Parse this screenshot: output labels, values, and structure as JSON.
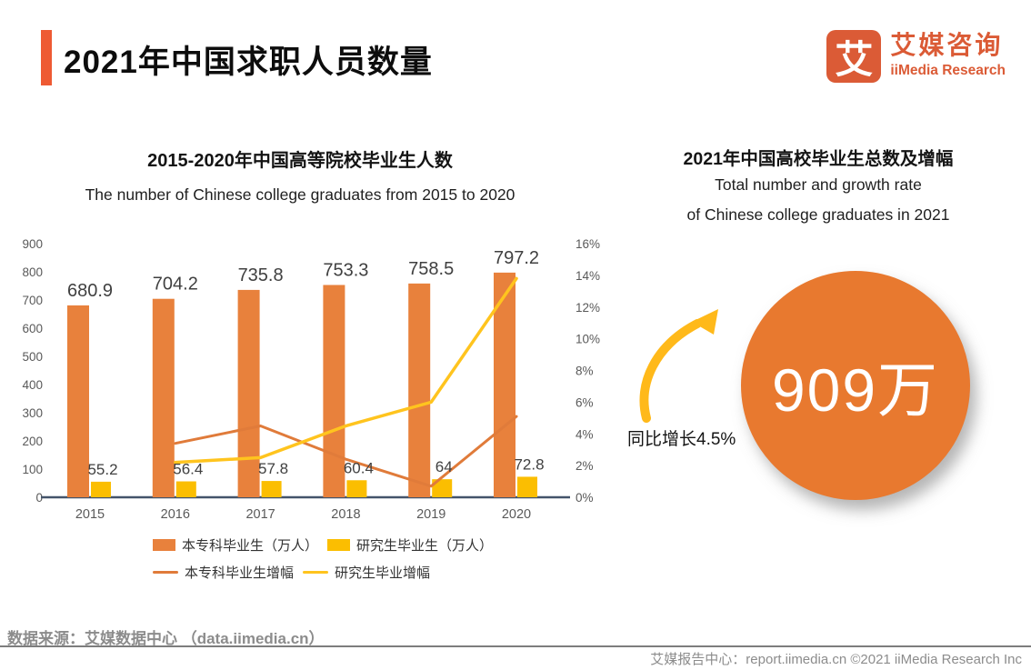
{
  "header": {
    "title": "2021年中国求职人员数量",
    "logo": {
      "mark": "艾",
      "name_cn": "艾媒咨询",
      "name_en": "iiMedia Research"
    }
  },
  "chart_data": [
    {
      "type": "bar",
      "title": "2015-2020年中国高等院校毕业生人数",
      "subtitle": "The number of Chinese college graduates from 2015 to 2020",
      "categories": [
        "2015",
        "2016",
        "2017",
        "2018",
        "2019",
        "2020"
      ],
      "series": [
        {
          "name": "本专科毕业生（万人）",
          "type": "bar",
          "axis": "left",
          "color": "#E8813C",
          "values": [
            680.9,
            704.2,
            735.8,
            753.3,
            758.5,
            797.2
          ]
        },
        {
          "name": "研究生毕业生（万人）",
          "type": "bar",
          "axis": "left",
          "color": "#FBBE01",
          "values": [
            55.2,
            56.4,
            57.8,
            60.4,
            64,
            72.8
          ]
        },
        {
          "name": "本专科毕业生增幅",
          "type": "line",
          "axis": "right",
          "color": "#E07B3A",
          "values": [
            null,
            3.4,
            4.5,
            2.4,
            0.7,
            5.1
          ]
        },
        {
          "name": "研究生毕业增幅",
          "type": "line",
          "axis": "right",
          "color": "#FFC41E",
          "values": [
            null,
            2.2,
            2.5,
            4.5,
            6.0,
            13.8
          ]
        }
      ],
      "left_axis": {
        "min": 0,
        "max": 900,
        "step": 100,
        "suffix": ""
      },
      "right_axis": {
        "min": 0,
        "max": 16,
        "step": 2,
        "suffix": "%"
      },
      "grid": "off",
      "legend_position": "bottom"
    },
    {
      "type": "infographic",
      "title": "2021年中国高校毕业生总数及增幅",
      "subtitle": [
        "Total number and growth rate",
        "of Chinese college graduates in 2021"
      ],
      "total": "909万",
      "growth_label": "同比增长4.5%"
    }
  ],
  "colors": {
    "accent": "#EE5A33",
    "logo": "#DB5B36",
    "bar_primary": "#E8813C",
    "bar_secondary": "#FBBE01",
    "line_primary": "#E07B3A",
    "line_secondary": "#FFC41E",
    "circle": "#E8792F",
    "axis": "#44546A",
    "footer_gray": "#8C8C8C"
  },
  "footer": {
    "source": "数据来源：艾媒数据中心 （data.iimedia.cn）",
    "report": "艾媒报告中心：report.iimedia.cn  ©2021  iiMedia Research Inc"
  }
}
